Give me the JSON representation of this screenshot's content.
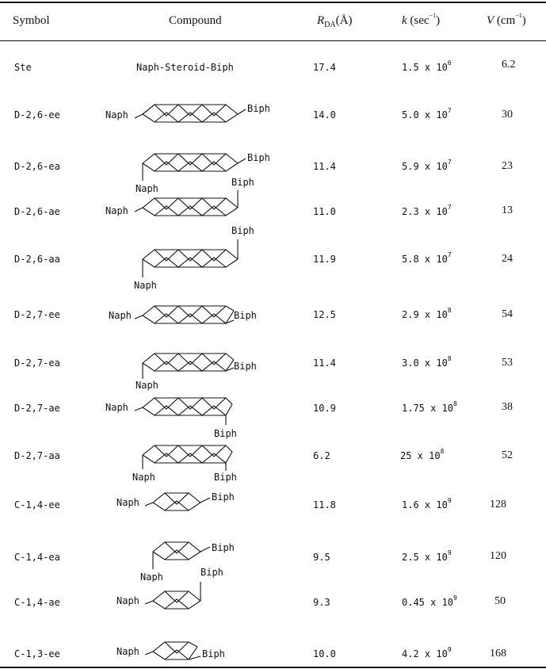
{
  "headers": {
    "symbol": "Symbol",
    "compound": "Compound",
    "r_main": "R",
    "r_sub": "DA",
    "r_unit": "(Å)",
    "k_var": "k",
    "k_unit": " (sec",
    "k_exp": "−1",
    "k_close": ")",
    "v_var": "V",
    "v_unit": " (cm",
    "v_exp": "−1",
    "v_close": ")"
  },
  "labels": {
    "naph": "Naph",
    "biph": "Biph"
  },
  "rows": [
    {
      "symbol": "Ste",
      "compound": "Naph-Steroid-Biph",
      "r": "17.4",
      "k_mant": "1.5",
      "k_exp": "6",
      "v": "6.2"
    },
    {
      "symbol": "D-2,6-ee",
      "r": "14.0",
      "k_mant": "5.0",
      "k_exp": "7",
      "v": "30"
    },
    {
      "symbol": "D-2,6-ea",
      "r": "11.4",
      "k_mant": "5.9",
      "k_exp": "7",
      "v": "23"
    },
    {
      "symbol": "D-2,6-ae",
      "r": "11.0",
      "k_mant": "2.3",
      "k_exp": "7",
      "v": "13"
    },
    {
      "symbol": "D-2,6-aa",
      "r": "11.9",
      "k_mant": "5.8",
      "k_exp": "7",
      "v": "24"
    },
    {
      "symbol": "D-2,7-ee",
      "r": "12.5",
      "k_mant": "2.9",
      "k_exp": "8",
      "v": "54"
    },
    {
      "symbol": "D-2,7-ea",
      "r": "11.4",
      "k_mant": "3.0",
      "k_exp": "8",
      "v": "53"
    },
    {
      "symbol": "D-2,7-ae",
      "r": "10.9",
      "k_mant": "1.75",
      "k_exp": "8",
      "v": "38"
    },
    {
      "symbol": "D-2,7-aa",
      "r": "6.2",
      "k_mant": "25",
      "k_exp": "8",
      "v": "52"
    },
    {
      "symbol": "C-1,4-ee",
      "r": "11.8",
      "k_mant": "1.6",
      "k_exp": "9",
      "v": "128"
    },
    {
      "symbol": "C-1,4-ea",
      "r": "9.5",
      "k_mant": "2.5",
      "k_exp": "9",
      "v": "120"
    },
    {
      "symbol": "C-1,4-ae",
      "r": "9.3",
      "k_mant": "0.45",
      "k_exp": "9",
      "v": "50"
    },
    {
      "symbol": "C-1,3-ee",
      "r": "10.0",
      "k_mant": "4.2",
      "k_exp": "9",
      "v": "168"
    }
  ],
  "times": " x 10"
}
